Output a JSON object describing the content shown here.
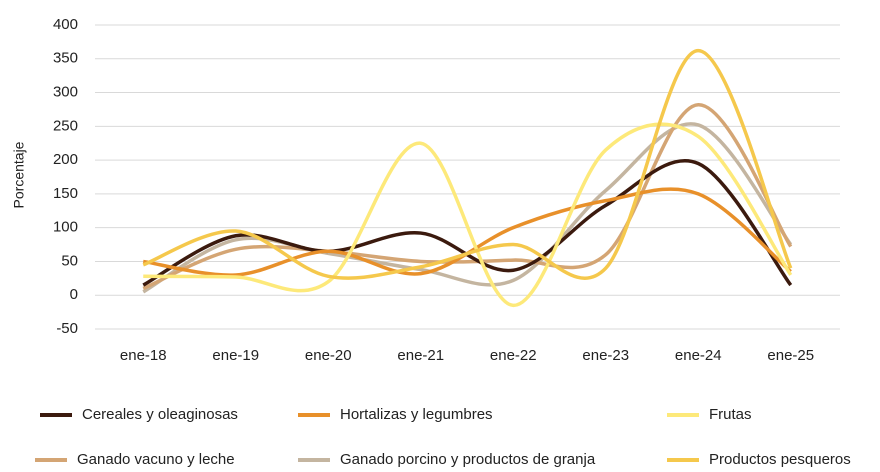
{
  "chart_data": {
    "type": "line",
    "y_label": "Porcentaje",
    "categories": [
      "ene-18",
      "ene-19",
      "ene-20",
      "ene-21",
      "ene-22",
      "ene-23",
      "ene-24",
      "ene-25"
    ],
    "series": [
      {
        "name": "Cereales y oleaginosas",
        "color": "#3b1a0e",
        "values": [
          15,
          88,
          65,
          92,
          37,
          133,
          195,
          15
        ]
      },
      {
        "name": "Hortalizas y legumbres",
        "color": "#e8902a",
        "values": [
          50,
          30,
          65,
          32,
          100,
          140,
          150,
          35
        ]
      },
      {
        "name": "Frutas",
        "color": "#fde97a",
        "values": [
          28,
          27,
          20,
          225,
          -15,
          215,
          235,
          30
        ]
      },
      {
        "name": "Ganado vacuno y leche",
        "color": "#d4a574",
        "values": [
          10,
          68,
          65,
          50,
          52,
          60,
          282,
          72
        ]
      },
      {
        "name": "Ganado porcino y productos de granja",
        "color": "#c4b5a0",
        "values": [
          5,
          82,
          62,
          38,
          22,
          155,
          252,
          75
        ]
      },
      {
        "name": "Productos pesqueros",
        "color": "#f5c84c",
        "values": [
          45,
          95,
          28,
          42,
          75,
          40,
          362,
          40
        ]
      }
    ],
    "ylim": [
      -50,
      400
    ],
    "yticks": [
      -50,
      0,
      50,
      100,
      150,
      200,
      250,
      300,
      350,
      400
    ],
    "grid": true,
    "legend": "bottom"
  }
}
